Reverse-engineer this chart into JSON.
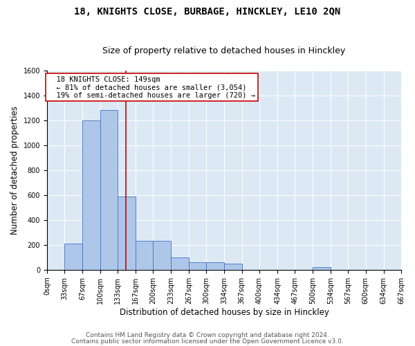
{
  "title": "18, KNIGHTS CLOSE, BURBAGE, HINCKLEY, LE10 2QN",
  "subtitle": "Size of property relative to detached houses in Hinckley",
  "xlabel": "Distribution of detached houses by size in Hinckley",
  "ylabel": "Number of detached properties",
  "footer_line1": "Contains HM Land Registry data © Crown copyright and database right 2024.",
  "footer_line2": "Contains public sector information licensed under the Open Government Licence v3.0.",
  "annotation_line1": "18 KNIGHTS CLOSE: 149sqm",
  "annotation_line2": "← 81% of detached houses are smaller (3,054)",
  "annotation_line3": "19% of semi-detached houses are larger (720) →",
  "property_size": 149,
  "bar_edges": [
    0,
    33,
    67,
    100,
    133,
    167,
    200,
    233,
    267,
    300,
    334,
    367,
    400,
    434,
    467,
    500,
    534,
    567,
    600,
    634,
    667
  ],
  "bar_heights": [
    0,
    210,
    1200,
    1280,
    590,
    230,
    230,
    100,
    60,
    60,
    50,
    0,
    0,
    0,
    0,
    20,
    0,
    0,
    0,
    0
  ],
  "bar_color": "#aec6e8",
  "bar_edge_color": "#4472c4",
  "vline_color": "#cc0000",
  "vline_x": 149,
  "ylim": [
    0,
    1600
  ],
  "xlim": [
    0,
    667
  ],
  "yticks": [
    0,
    200,
    400,
    600,
    800,
    1000,
    1200,
    1400,
    1600
  ],
  "bg_color": "#dce9f5",
  "annotation_box_color": "#cc0000",
  "title_fontsize": 10,
  "subtitle_fontsize": 9,
  "axis_label_fontsize": 8.5,
  "tick_fontsize": 7,
  "footer_fontsize": 6.5,
  "annotation_fontsize": 7.5
}
